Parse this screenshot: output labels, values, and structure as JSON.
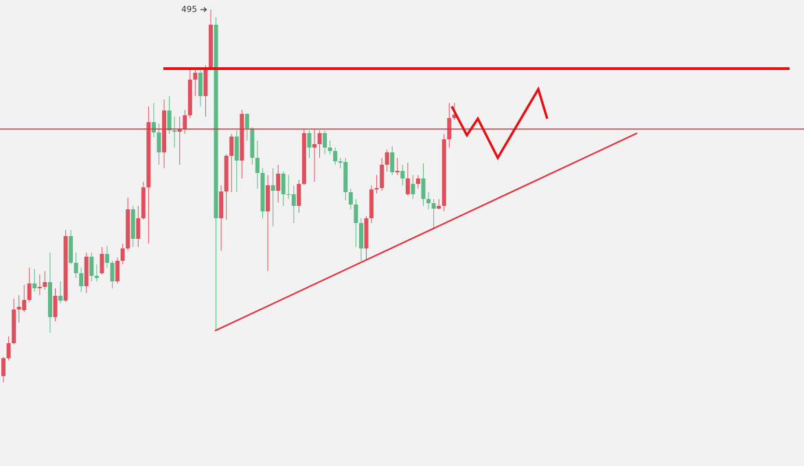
{
  "chart_data": {
    "type": "candlestick",
    "up_color": "#e0505c",
    "down_color": "#5cb884",
    "ylim": [
      162.5,
      502
    ],
    "max_label": 495,
    "open": [
      228,
      241,
      252,
      276.5,
      276,
      283.5,
      295.5,
      292,
      293,
      296.5,
      271,
      286.5,
      283,
      330,
      310.5,
      303,
      293.5,
      315,
      301,
      303,
      317,
      310.5,
      297,
      312,
      321,
      349.5,
      328,
      343,
      365.5,
      413,
      405.5,
      391,
      421.5,
      407,
      406,
      408,
      418,
      444,
      449,
      432,
      453,
      484,
      343,
      362.5,
      388.5,
      402.5,
      385,
      419,
      408.5,
      387,
      376,
      348,
      367,
      363,
      375.5,
      360.5,
      360.5,
      352,
      368,
      405,
      394.5,
      397,
      405,
      394.5,
      392,
      384.5,
      384,
      362,
      353,
      339.5,
      321,
      343,
      364,
      365,
      382,
      391,
      376.5,
      377.5,
      360.5,
      368,
      368,
      372,
      357,
      354,
      350,
      352,
      400.5,
      416
    ],
    "high": [
      242,
      257,
      284.5,
      287,
      294.5,
      307,
      306,
      302,
      304.5,
      318,
      292,
      297,
      334.5,
      334.5,
      318,
      307,
      318,
      318,
      309.5,
      322,
      323,
      312,
      314.5,
      324.5,
      358,
      352,
      352,
      369.5,
      424.5,
      427,
      412,
      429.5,
      432,
      417,
      417,
      422,
      453,
      453,
      452,
      454.5,
      495,
      489.5,
      367,
      389.5,
      404.5,
      407,
      422,
      419.5,
      409.5,
      399.5,
      379.5,
      374.5,
      379.5,
      382,
      377,
      374.5,
      367,
      371,
      408,
      407,
      408,
      407,
      407,
      399.5,
      394.5,
      387,
      387,
      364.5,
      357,
      343,
      344.5,
      367,
      374.5,
      387,
      393,
      395.5,
      387,
      382,
      383.5,
      374.5,
      374.5,
      383,
      362,
      357,
      357,
      404.5,
      427,
      427
    ],
    "low": [
      223.5,
      239.5,
      251,
      267,
      274.5,
      282,
      289.5,
      287,
      291,
      259.5,
      268,
      281,
      282,
      309.5,
      299.5,
      289.5,
      288.5,
      297,
      297,
      302,
      307,
      292,
      295.5,
      309.5,
      319.5,
      322,
      322,
      342,
      324.5,
      402,
      382,
      379.5,
      404.5,
      394.5,
      382,
      404.5,
      416,
      432,
      424.5,
      417,
      452,
      261,
      319.5,
      342,
      362,
      362,
      372,
      399.5,
      382,
      364.5,
      343,
      304.5,
      337,
      354.5,
      352,
      357,
      339.5,
      347,
      367,
      387,
      369.5,
      387,
      389.5,
      389.5,
      382,
      379.5,
      356,
      349.5,
      322,
      312,
      313,
      339.5,
      361,
      363,
      377,
      374.5,
      374.5,
      367,
      359.5,
      357,
      364.5,
      352,
      349.5,
      336,
      349.5,
      348,
      394.5,
      414.5
    ],
    "close": [
      241,
      252,
      276.5,
      278.5,
      283.5,
      295.5,
      292,
      293,
      296.5,
      271,
      286.5,
      283,
      330,
      310.5,
      303,
      293.5,
      315,
      301,
      299.5,
      317,
      310.5,
      297,
      312,
      321,
      349.5,
      328,
      343,
      365.5,
      413,
      405.5,
      391,
      421.5,
      407,
      406,
      408,
      418,
      444,
      449,
      432,
      453,
      484,
      343,
      362.5,
      388.5,
      402.5,
      385,
      419,
      408.5,
      387,
      376,
      348,
      367,
      363,
      375.5,
      360.5,
      360,
      352,
      368,
      405,
      394.5,
      397,
      405,
      394.5,
      392,
      384.5,
      383.5,
      362,
      353,
      339.5,
      321,
      343,
      364,
      365,
      382,
      391,
      376.5,
      377.5,
      372,
      372,
      360.5,
      372,
      357,
      354,
      350,
      352,
      400.5,
      416,
      418.5
    ]
  }
}
